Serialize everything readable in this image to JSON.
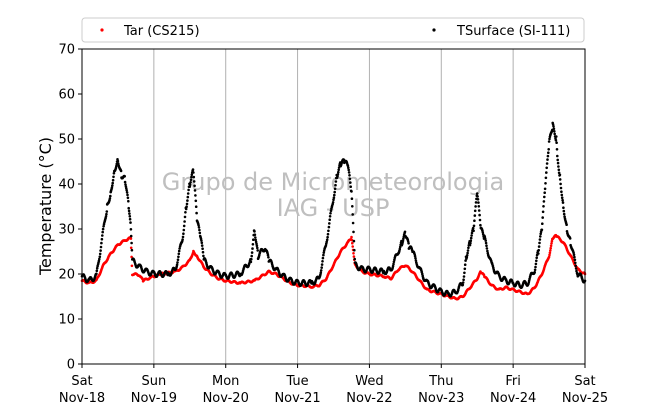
{
  "chart_data": {
    "type": "scatter",
    "ylabel": "Temperature (°C)",
    "ylim": [
      0,
      70
    ],
    "yticks": [
      0,
      10,
      20,
      30,
      40,
      50,
      60,
      70
    ],
    "xlim": [
      0,
      7
    ],
    "xticks": [
      {
        "x": 0,
        "day": "Sat",
        "date": "Nov-18"
      },
      {
        "x": 1,
        "day": "Sun",
        "date": "Nov-19"
      },
      {
        "x": 2,
        "day": "Mon",
        "date": "Nov-20"
      },
      {
        "x": 3,
        "day": "Tue",
        "date": "Nov-21"
      },
      {
        "x": 4,
        "day": "Wed",
        "date": "Nov-22"
      },
      {
        "x": 5,
        "day": "Thu",
        "date": "Nov-23"
      },
      {
        "x": 6,
        "day": "Fri",
        "date": "Nov-24"
      },
      {
        "x": 7,
        "day": "Sat",
        "date": "Nov-25"
      }
    ],
    "grid": "vertical",
    "legend_position": "top",
    "watermark": [
      "Grupo de Micrometeorologia",
      "IAG - USP"
    ],
    "series": [
      {
        "name": "Tar (CS215)",
        "color": "#ff0000",
        "points": [
          [
            0.0,
            18.5
          ],
          [
            0.1,
            18.0
          ],
          [
            0.2,
            18.5
          ],
          [
            0.3,
            22.0
          ],
          [
            0.4,
            24.5
          ],
          [
            0.5,
            26.5
          ],
          [
            0.6,
            27.5
          ],
          [
            0.68,
            28.0
          ],
          [
            0.7,
            20.0
          ],
          [
            0.8,
            19.8
          ],
          [
            0.85,
            18.5
          ],
          [
            0.95,
            19.2
          ],
          [
            1.1,
            20.0
          ],
          [
            1.3,
            20.5
          ],
          [
            1.4,
            21.5
          ],
          [
            1.5,
            23.0
          ],
          [
            1.55,
            25.0
          ],
          [
            1.6,
            24.0
          ],
          [
            1.7,
            21.5
          ],
          [
            1.8,
            20.0
          ],
          [
            1.9,
            19.0
          ],
          [
            2.0,
            18.5
          ],
          [
            2.2,
            18.0
          ],
          [
            2.4,
            18.5
          ],
          [
            2.5,
            19.5
          ],
          [
            2.6,
            20.5
          ],
          [
            2.7,
            20.0
          ],
          [
            2.8,
            19.0
          ],
          [
            2.9,
            18.0
          ],
          [
            3.0,
            17.5
          ],
          [
            3.2,
            17.2
          ],
          [
            3.3,
            17.5
          ],
          [
            3.4,
            19.0
          ],
          [
            3.5,
            22.0
          ],
          [
            3.6,
            25.0
          ],
          [
            3.7,
            27.0
          ],
          [
            3.75,
            28.0
          ],
          [
            3.8,
            22.0
          ],
          [
            3.9,
            20.5
          ],
          [
            4.0,
            20.0
          ],
          [
            4.2,
            19.5
          ],
          [
            4.3,
            19.0
          ],
          [
            4.4,
            21.0
          ],
          [
            4.5,
            22.0
          ],
          [
            4.6,
            20.5
          ],
          [
            4.7,
            18.5
          ],
          [
            4.8,
            16.5
          ],
          [
            4.9,
            16.0
          ],
          [
            5.0,
            15.5
          ],
          [
            5.1,
            15.0
          ],
          [
            5.2,
            14.5
          ],
          [
            5.3,
            15.0
          ],
          [
            5.4,
            17.0
          ],
          [
            5.5,
            19.0
          ],
          [
            5.55,
            20.5
          ],
          [
            5.6,
            19.5
          ],
          [
            5.7,
            17.5
          ],
          [
            5.8,
            16.5
          ],
          [
            5.9,
            17.0
          ],
          [
            6.0,
            16.5
          ],
          [
            6.1,
            16.0
          ],
          [
            6.2,
            15.5
          ],
          [
            6.3,
            17.0
          ],
          [
            6.4,
            20.0
          ],
          [
            6.5,
            24.0
          ],
          [
            6.55,
            28.0
          ],
          [
            6.6,
            28.5
          ],
          [
            6.7,
            27.0
          ],
          [
            6.8,
            24.0
          ],
          [
            6.9,
            21.0
          ],
          [
            7.0,
            20.0
          ]
        ]
      },
      {
        "name": "TSurface (SI-111)",
        "color": "#000000",
        "points": [
          [
            0.0,
            19.5
          ],
          [
            0.1,
            18.5
          ],
          [
            0.2,
            19.5
          ],
          [
            0.3,
            30.0
          ],
          [
            0.35,
            35.0
          ],
          [
            0.4,
            38.0
          ],
          [
            0.45,
            43.0
          ],
          [
            0.5,
            45.5
          ],
          [
            0.55,
            42.0
          ],
          [
            0.6,
            41.0
          ],
          [
            0.65,
            35.0
          ],
          [
            0.68,
            30.0
          ],
          [
            0.7,
            23.0
          ],
          [
            0.8,
            21.5
          ],
          [
            0.9,
            20.5
          ],
          [
            1.0,
            20.0
          ],
          [
            1.2,
            20.0
          ],
          [
            1.3,
            21.0
          ],
          [
            1.4,
            28.0
          ],
          [
            1.45,
            35.0
          ],
          [
            1.5,
            40.0
          ],
          [
            1.55,
            43.0
          ],
          [
            1.6,
            32.0
          ],
          [
            1.65,
            28.0
          ],
          [
            1.7,
            23.0
          ],
          [
            1.8,
            21.0
          ],
          [
            1.9,
            20.0
          ],
          [
            2.0,
            19.5
          ],
          [
            2.2,
            20.0
          ],
          [
            2.35,
            23.0
          ],
          [
            2.4,
            30.0
          ],
          [
            2.45,
            24.0
          ],
          [
            2.55,
            26.0
          ],
          [
            2.6,
            23.0
          ],
          [
            2.7,
            21.0
          ],
          [
            2.8,
            19.5
          ],
          [
            2.9,
            18.5
          ],
          [
            3.0,
            18.0
          ],
          [
            3.2,
            18.0
          ],
          [
            3.3,
            19.0
          ],
          [
            3.4,
            27.0
          ],
          [
            3.5,
            37.0
          ],
          [
            3.55,
            42.0
          ],
          [
            3.6,
            44.5
          ],
          [
            3.65,
            45.0
          ],
          [
            3.7,
            44.0
          ],
          [
            3.75,
            38.0
          ],
          [
            3.8,
            22.0
          ],
          [
            3.9,
            21.0
          ],
          [
            4.0,
            21.0
          ],
          [
            4.2,
            20.5
          ],
          [
            4.3,
            21.0
          ],
          [
            4.4,
            25.0
          ],
          [
            4.45,
            27.0
          ],
          [
            4.5,
            29.0
          ],
          [
            4.55,
            26.0
          ],
          [
            4.6,
            25.0
          ],
          [
            4.7,
            21.0
          ],
          [
            4.8,
            18.0
          ],
          [
            4.9,
            17.0
          ],
          [
            5.0,
            16.0
          ],
          [
            5.1,
            15.5
          ],
          [
            5.2,
            16.0
          ],
          [
            5.3,
            18.0
          ],
          [
            5.35,
            24.0
          ],
          [
            5.4,
            27.0
          ],
          [
            5.45,
            30.0
          ],
          [
            5.5,
            38.0
          ],
          [
            5.55,
            30.0
          ],
          [
            5.6,
            28.0
          ],
          [
            5.7,
            22.0
          ],
          [
            5.8,
            19.5
          ],
          [
            5.9,
            18.5
          ],
          [
            6.0,
            18.0
          ],
          [
            6.1,
            17.5
          ],
          [
            6.2,
            18.0
          ],
          [
            6.3,
            21.0
          ],
          [
            6.35,
            25.0
          ],
          [
            6.4,
            30.0
          ],
          [
            6.45,
            40.0
          ],
          [
            6.5,
            49.0
          ],
          [
            6.55,
            53.0
          ],
          [
            6.6,
            50.0
          ],
          [
            6.62,
            45.0
          ],
          [
            6.65,
            42.0
          ],
          [
            6.7,
            35.0
          ],
          [
            6.75,
            30.0
          ],
          [
            6.8,
            27.0
          ],
          [
            6.9,
            20.0
          ],
          [
            7.0,
            18.5
          ]
        ]
      }
    ]
  }
}
